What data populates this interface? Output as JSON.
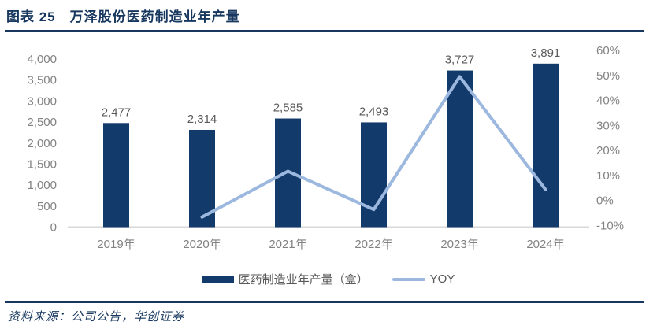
{
  "header": {
    "title": "图表 25　万泽股份医药制造业年产量"
  },
  "footer": {
    "source": "资料来源：公司公告，华创证券"
  },
  "chart_data": {
    "type": "bar",
    "subtype": "combo-bar-line-dual-axis",
    "title": "万泽股份医药制造业年产量",
    "categories": [
      "2019年",
      "2020年",
      "2021年",
      "2022年",
      "2023年",
      "2024年"
    ],
    "series": [
      {
        "name": "医药制造业年产量（盒）",
        "type": "bar",
        "axis": "left",
        "values": [
          2477,
          2314,
          2585,
          2493,
          3727,
          3891
        ]
      },
      {
        "name": "YOY",
        "type": "line",
        "axis": "right",
        "values": [
          null,
          -6.6,
          11.7,
          -3.6,
          49.5,
          4.4
        ]
      }
    ],
    "data_labels": [
      "2,477",
      "2,314",
      "2,585",
      "2,493",
      "3,727",
      "3,891"
    ],
    "left_axis": {
      "min": 0,
      "max": 4000,
      "step": 500,
      "tick_labels": [
        "0",
        "500",
        "1,000",
        "1,500",
        "2,000",
        "2,500",
        "3,000",
        "3,500",
        "4,000"
      ]
    },
    "right_axis": {
      "min": -10,
      "max": 60,
      "step": 10,
      "tick_labels": [
        "-10%",
        "0%",
        "10%",
        "20%",
        "30%",
        "40%",
        "50%",
        "60%"
      ]
    },
    "grid": false,
    "legend_position": "bottom",
    "legend": [
      {
        "label": "医药制造业年产量（盒）",
        "swatch": "bar"
      },
      {
        "label": "YOY",
        "swatch": "line"
      }
    ],
    "colors": {
      "bar": "#123a6a",
      "line": "#9cb8df",
      "axis_line": "#d9d9d9",
      "tick_label": "#828282",
      "data_label": "#595959",
      "accent": "#17375e"
    }
  }
}
